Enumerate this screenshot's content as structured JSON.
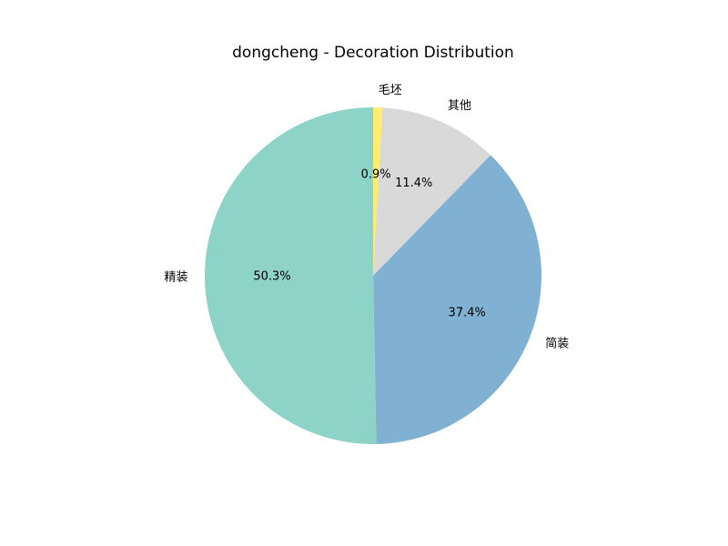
{
  "chart_data": {
    "type": "pie",
    "title": "dongcheng - Decoration Distribution",
    "slices": [
      {
        "label": "毛坯",
        "value": 0.9,
        "pct_label": "0.9%",
        "color": "#ffed6f"
      },
      {
        "label": "其他",
        "value": 11.4,
        "pct_label": "11.4%",
        "color": "#d9d9d9"
      },
      {
        "label": "简装",
        "value": 37.4,
        "pct_label": "37.4%",
        "color": "#80b1d3"
      },
      {
        "label": "精装",
        "value": 50.3,
        "pct_label": "50.3%",
        "color": "#8dd3c7"
      }
    ],
    "start_angle_deg": 90,
    "direction": "clockwise",
    "legend": "none"
  }
}
